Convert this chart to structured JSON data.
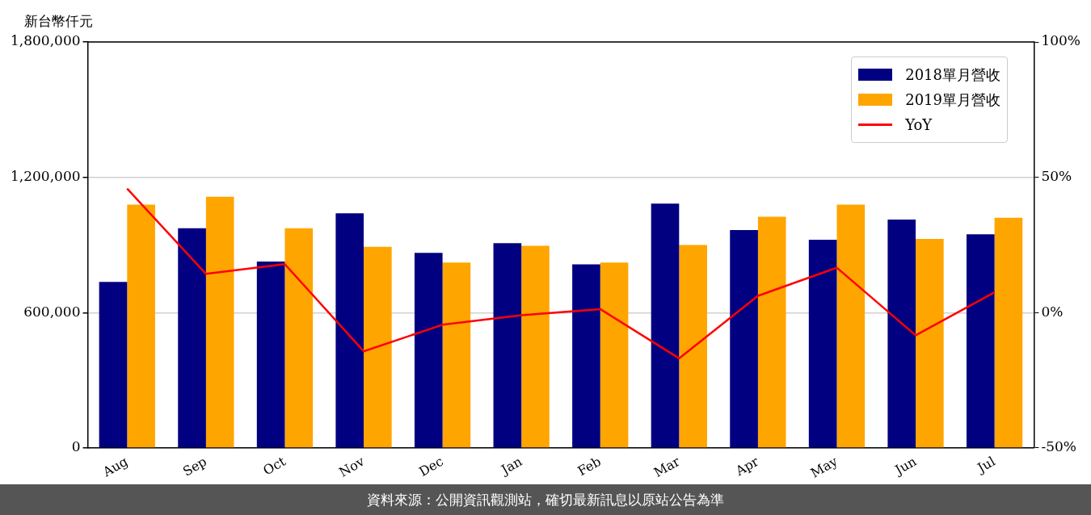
{
  "chart_data": {
    "type": "bar",
    "ylabel": "新台幣仟元",
    "categories": [
      "Aug",
      "Sep",
      "Oct",
      "Nov",
      "Dec",
      "Jan",
      "Feb",
      "Mar",
      "Apr",
      "May",
      "Jun",
      "Jul"
    ],
    "series": [
      {
        "name": "2018單月營收",
        "color": "#000080",
        "values": [
          736000,
          974000,
          826000,
          1040000,
          865000,
          908000,
          814000,
          1083000,
          966000,
          923000,
          1013000,
          947000
        ]
      },
      {
        "name": "2019單月營收",
        "color": "#ffa500",
        "values": [
          1079000,
          1114000,
          974000,
          892000,
          822000,
          896000,
          822000,
          900000,
          1025000,
          1079000,
          927000,
          1021000
        ]
      },
      {
        "name": "YoY",
        "type": "line",
        "axis": "y2",
        "color": "#ff0000",
        "values": [
          45.8,
          14.3,
          17.9,
          -14.3,
          -4.5,
          -1,
          1.3,
          -16.9,
          6.2,
          16.6,
          -8.4,
          7.5
        ]
      }
    ],
    "ylim": [
      0,
      1800000
    ],
    "yticks": [
      0,
      {
        "value": 600000,
        "label": "600,000"
      },
      {
        "value": 1200000,
        "label": "1,200,000"
      },
      {
        "value": 1800000,
        "label": "1,800,000"
      }
    ],
    "y2lim": [
      -50,
      100
    ],
    "y2ticks": [
      {
        "value": -50,
        "label": "-50%"
      },
      {
        "value": 0,
        "label": "0%"
      },
      {
        "value": 50,
        "label": "50%"
      },
      {
        "value": 100,
        "label": "100%"
      }
    ],
    "grid": "y",
    "legend": "top right",
    "marker": "none",
    "line_style": "solid",
    "annotations": [
      "資料來源：公開資訊觀測站，確切最新訊息以原站公告為準"
    ]
  }
}
